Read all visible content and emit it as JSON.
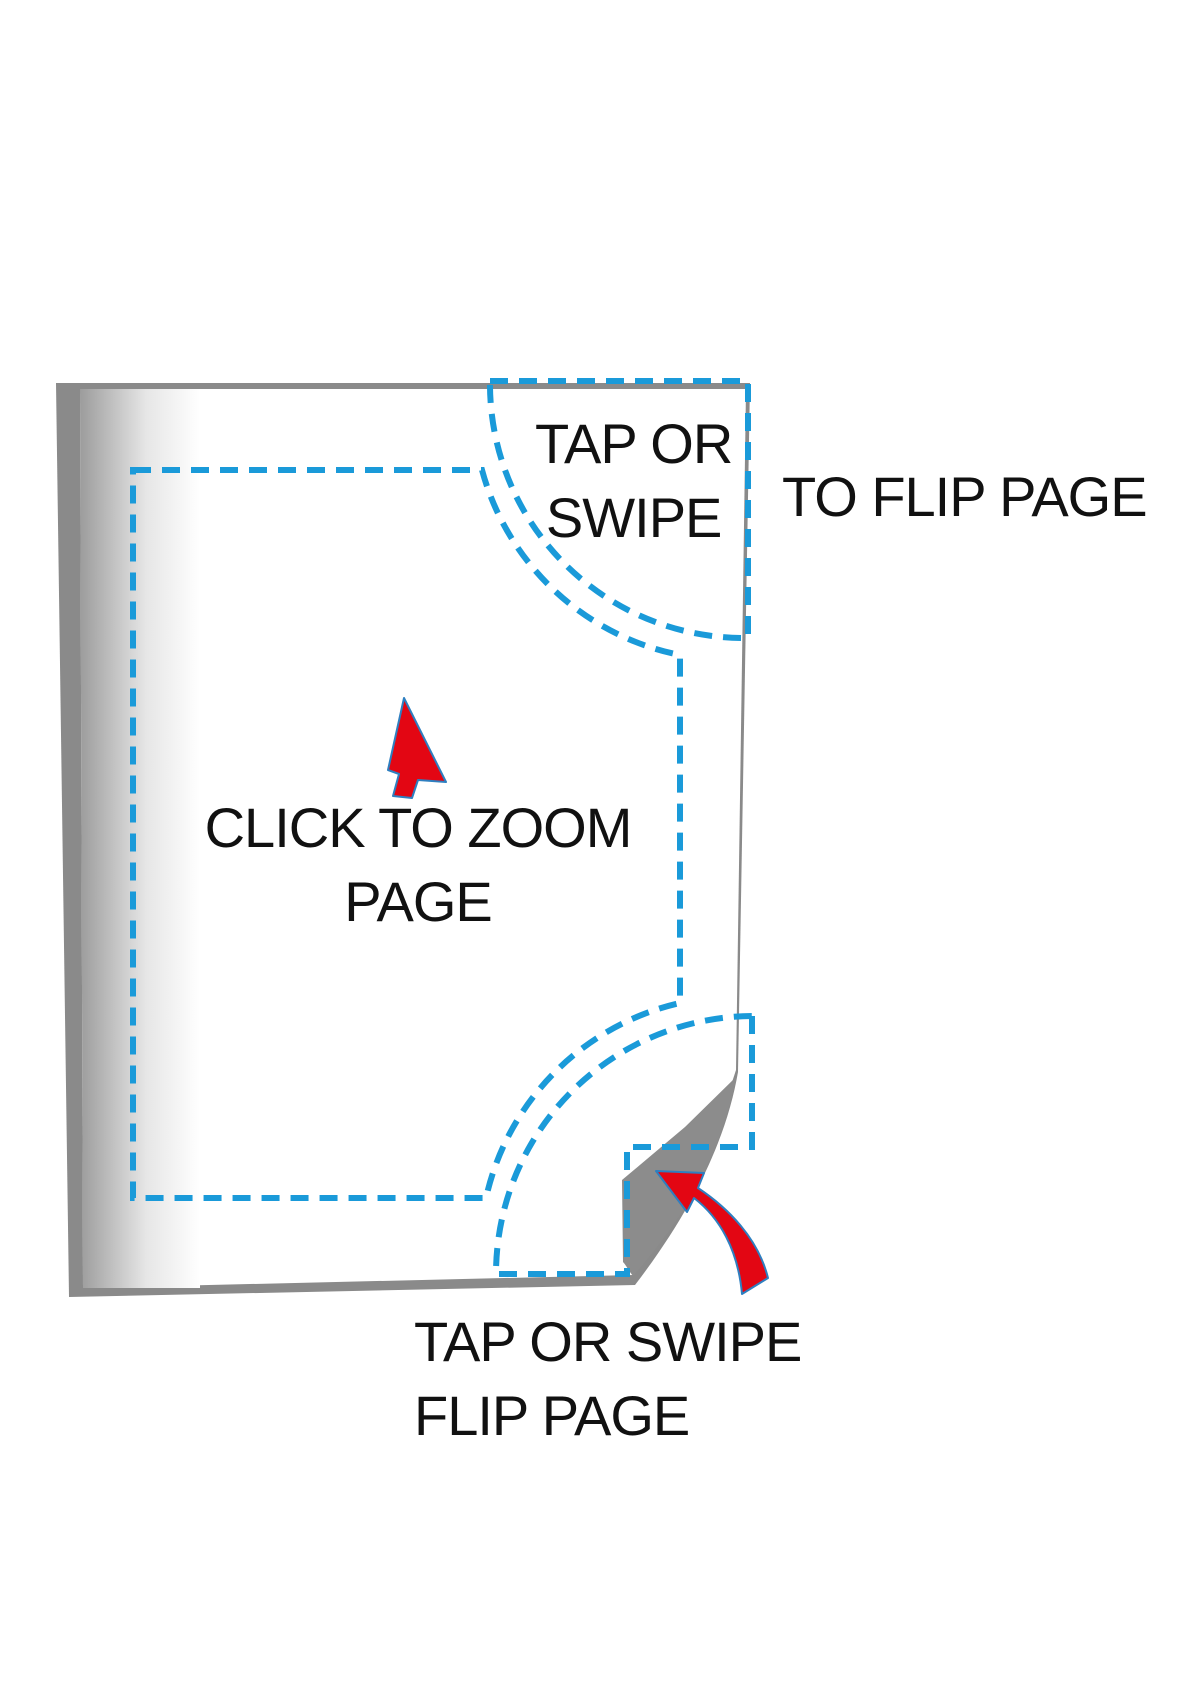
{
  "labels": {
    "top_corner": {
      "line1": "TAP OR",
      "line2": "SWIPE"
    },
    "top_side": "TO FLIP PAGE",
    "zoom": {
      "line1": "CLICK TO ZOOM",
      "line2": "PAGE"
    },
    "bottom": {
      "line1": "TAP OR SWIPE",
      "line2": "FLIP PAGE"
    }
  },
  "colors": {
    "page_border": "#8a8a8a",
    "page_fill": "#ffffff",
    "spine_shadow": "#9c9c9c",
    "curl": "#8c8c8c",
    "dashed_zone": "#1a9ad9",
    "arrow_fill": "#e30613",
    "arrow_outline": "#2e7fc0",
    "text": "#111111"
  }
}
